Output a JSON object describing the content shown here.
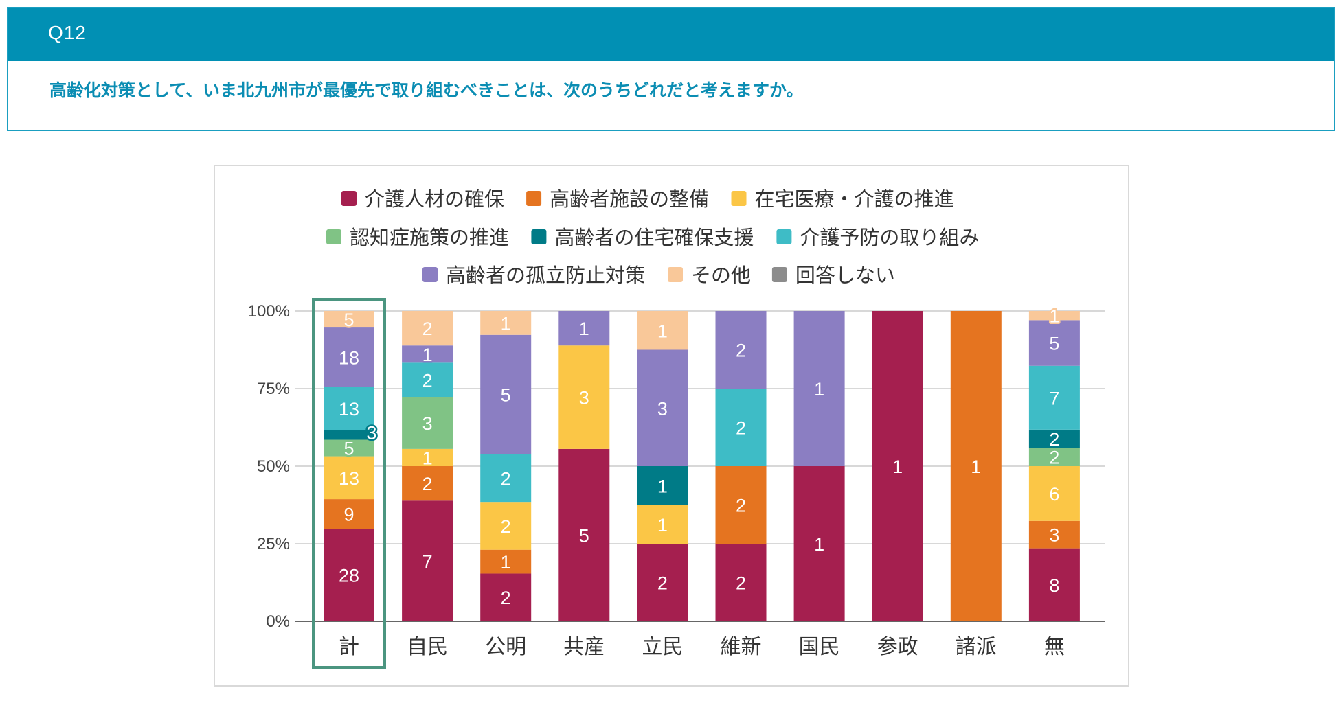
{
  "question": {
    "number": "Q12",
    "text": "高齢化対策として、いま北九州市が最優先で取り組むべきことは、次のうちどれだと考えますか。"
  },
  "colors": {
    "header_bg": "#0190b4",
    "question_text": "#0b8db3",
    "highlight_box": "#4b9580"
  },
  "chart_data": {
    "type": "bar",
    "stacked": "percent",
    "title": "",
    "xlabel": "",
    "ylabel": "",
    "ylim": [
      0,
      100
    ],
    "yticks": [
      "0%",
      "25%",
      "50%",
      "75%",
      "100%"
    ],
    "grid": true,
    "legend_position": "top",
    "highlighted_category": "計",
    "categories": [
      "計",
      "自民",
      "公明",
      "共産",
      "立民",
      "維新",
      "国民",
      "参政",
      "諸派",
      "無"
    ],
    "series": [
      {
        "name": "介護人材の確保",
        "color": "#a51f4f",
        "values": [
          28,
          7,
          2,
          5,
          2,
          2,
          1,
          1,
          0,
          8
        ]
      },
      {
        "name": "高齢者施設の整備",
        "color": "#e57420",
        "values": [
          9,
          2,
          1,
          0,
          0,
          2,
          0,
          0,
          1,
          3
        ]
      },
      {
        "name": "在宅医療・介護の推進",
        "color": "#fbc646",
        "values": [
          13,
          1,
          2,
          3,
          1,
          0,
          0,
          0,
          0,
          6
        ]
      },
      {
        "name": "認知症施策の推進",
        "color": "#80c385",
        "values": [
          5,
          3,
          0,
          0,
          0,
          0,
          0,
          0,
          0,
          2
        ]
      },
      {
        "name": "高齢者の住宅確保支援",
        "color": "#007b87",
        "values": [
          3,
          0,
          0,
          0,
          1,
          0,
          0,
          0,
          0,
          2
        ]
      },
      {
        "name": "介護予防の取り組み",
        "color": "#3ebcc6",
        "values": [
          13,
          2,
          2,
          0,
          0,
          2,
          0,
          0,
          0,
          7
        ]
      },
      {
        "name": "高齢者の孤立防止対策",
        "color": "#8b7ec2",
        "values": [
          18,
          1,
          5,
          1,
          3,
          2,
          1,
          0,
          0,
          5
        ]
      },
      {
        "name": "その他",
        "color": "#f9c899",
        "values": [
          5,
          2,
          1,
          0,
          1,
          0,
          0,
          0,
          0,
          1
        ]
      },
      {
        "name": "回答しない",
        "color": "#8c8c8c",
        "values": [
          0,
          0,
          0,
          0,
          0,
          0,
          0,
          0,
          0,
          0
        ]
      }
    ]
  }
}
